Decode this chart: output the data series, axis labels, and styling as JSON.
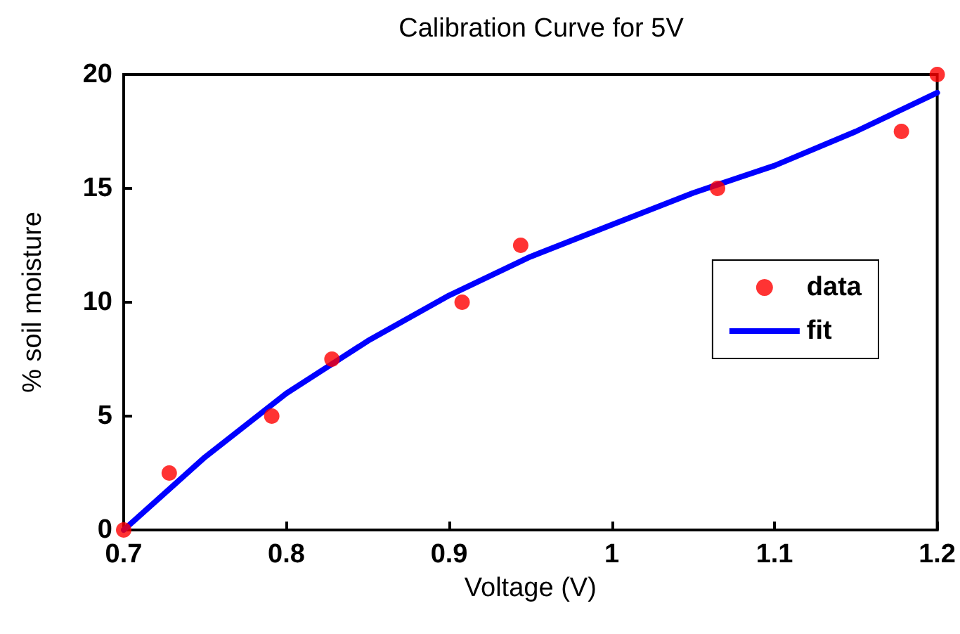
{
  "chart_data": {
    "type": "scatter",
    "title": "Calibration Curve for 5V",
    "xlabel": "Voltage (V)",
    "ylabel": "% soil moisture",
    "series": [
      {
        "name": "data",
        "color": "#ff0000",
        "marker": "circle",
        "x": [
          0.7,
          0.728,
          0.791,
          0.828,
          0.908,
          0.944,
          1.065,
          1.178,
          1.2
        ],
        "values": [
          0,
          2.5,
          5,
          7.5,
          10,
          12.5,
          15,
          17.5,
          20
        ]
      },
      {
        "name": "fit",
        "type": "line",
        "color": "#0000ff",
        "marker": "none",
        "line_style": "solid",
        "x": [
          0.7,
          0.75,
          0.8,
          0.85,
          0.9,
          0.95,
          1.0,
          1.05,
          1.1,
          1.15,
          1.2
        ],
        "values": [
          0,
          3.2,
          6.0,
          8.3,
          10.3,
          12.0,
          13.4,
          14.8,
          16.0,
          17.5,
          19.2
        ]
      }
    ],
    "xlim": [
      0.7,
      1.2
    ],
    "xticks": [
      0.7,
      0.8,
      0.9,
      1,
      1.1,
      1.2
    ],
    "ylim": [
      0,
      20
    ],
    "yticks": [
      0,
      5,
      10,
      15,
      20
    ],
    "grid": false,
    "legend": "right"
  }
}
